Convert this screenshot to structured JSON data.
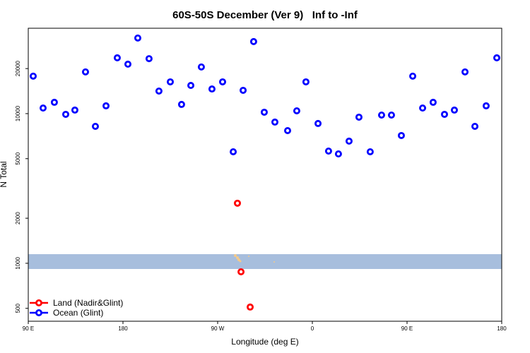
{
  "chart_data": {
    "type": "scatter",
    "title": "60S-50S December (Ver 9)   Inf to -Inf",
    "x_label": "Longitude (deg E)",
    "y_label": "N Total",
    "log_y": true,
    "legend": "bottomleft",
    "xlim": [
      90,
      540
    ],
    "ylim": [
      410,
      37200
    ],
    "xticks": [
      {
        "value": 90,
        "label": "90 E"
      },
      {
        "value": 180,
        "label": "180"
      },
      {
        "value": 270,
        "label": "90 W"
      },
      {
        "value": 360,
        "label": "0"
      },
      {
        "value": 450,
        "label": "90 E"
      },
      {
        "value": 540,
        "label": "180"
      }
    ],
    "yticks": [
      500,
      1000,
      2000,
      5000,
      10000,
      20000
    ],
    "series": [
      {
        "name": "Land (Nadir&Glint)",
        "color": "#ff0000",
        "x": [
          288.8,
          292.2,
          300.9
        ],
        "values": [
          2520,
          877,
          510
        ]
      },
      {
        "name": "Ocean (Glint)",
        "color": "#0000ff",
        "x": [
          94.7,
          104.1,
          114.8,
          125.6,
          134.3,
          144.4,
          153.8,
          163.9,
          174.6,
          184.7,
          194.1,
          204.8,
          214.2,
          225.0,
          235.7,
          244.5,
          254.5,
          264.6,
          274.7,
          284.8,
          294.2,
          304.2,
          314.3,
          324.4,
          336.5,
          345.2,
          353.9,
          365.4,
          375.4,
          384.8,
          394.9,
          404.3,
          415.0,
          425.8,
          435.2,
          444.6,
          455.4,
          464.8,
          474.8,
          485.6,
          495.0,
          505.1,
          514.5,
          525.2,
          535.3
        ],
        "values": [
          17800,
          10900,
          11900,
          9890,
          10560,
          19000,
          8220,
          11270,
          23600,
          21400,
          32000,
          23300,
          14150,
          16300,
          11520,
          15430,
          20500,
          14610,
          16300,
          5560,
          14310,
          30300,
          10220,
          8780,
          7700,
          10440,
          16300,
          8590,
          5620,
          5380,
          6550,
          9470,
          5560,
          9780,
          9780,
          7140,
          17800,
          10900,
          11900,
          9890,
          10560,
          19000,
          8220,
          11270,
          23600
        ]
      }
    ]
  }
}
